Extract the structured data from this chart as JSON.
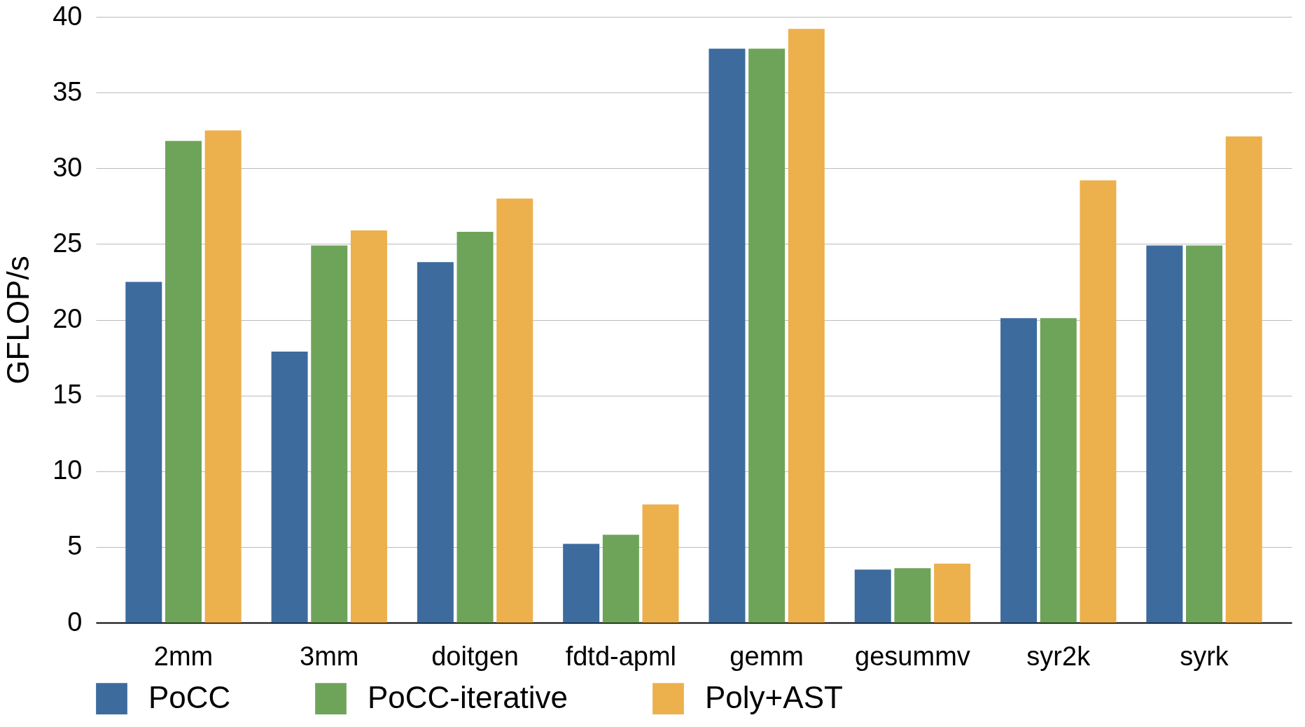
{
  "chart_data": {
    "type": "bar",
    "ylabel": "GFLOP/s",
    "categories": [
      "2mm",
      "3mm",
      "doitgen",
      "fdtd-apml",
      "gemm",
      "gesummv",
      "syr2k",
      "syrk"
    ],
    "series": [
      {
        "name": "PoCC",
        "color": "#3d6b9e",
        "values": [
          22.5,
          17.9,
          23.8,
          5.2,
          37.9,
          3.5,
          20.1,
          24.9
        ]
      },
      {
        "name": "PoCC-iterative",
        "color": "#6ea459",
        "values": [
          31.8,
          24.9,
          25.8,
          5.8,
          37.9,
          3.6,
          20.1,
          24.9
        ]
      },
      {
        "name": "Poly+AST",
        "color": "#ecb04c",
        "values": [
          32.5,
          25.9,
          28.0,
          7.8,
          39.2,
          3.9,
          29.2,
          32.1
        ]
      }
    ],
    "ylim": [
      0,
      40
    ],
    "yticks": [
      0,
      5,
      10,
      15,
      20,
      25,
      30,
      35,
      40
    ],
    "grid": "y",
    "legend": "bottom"
  }
}
